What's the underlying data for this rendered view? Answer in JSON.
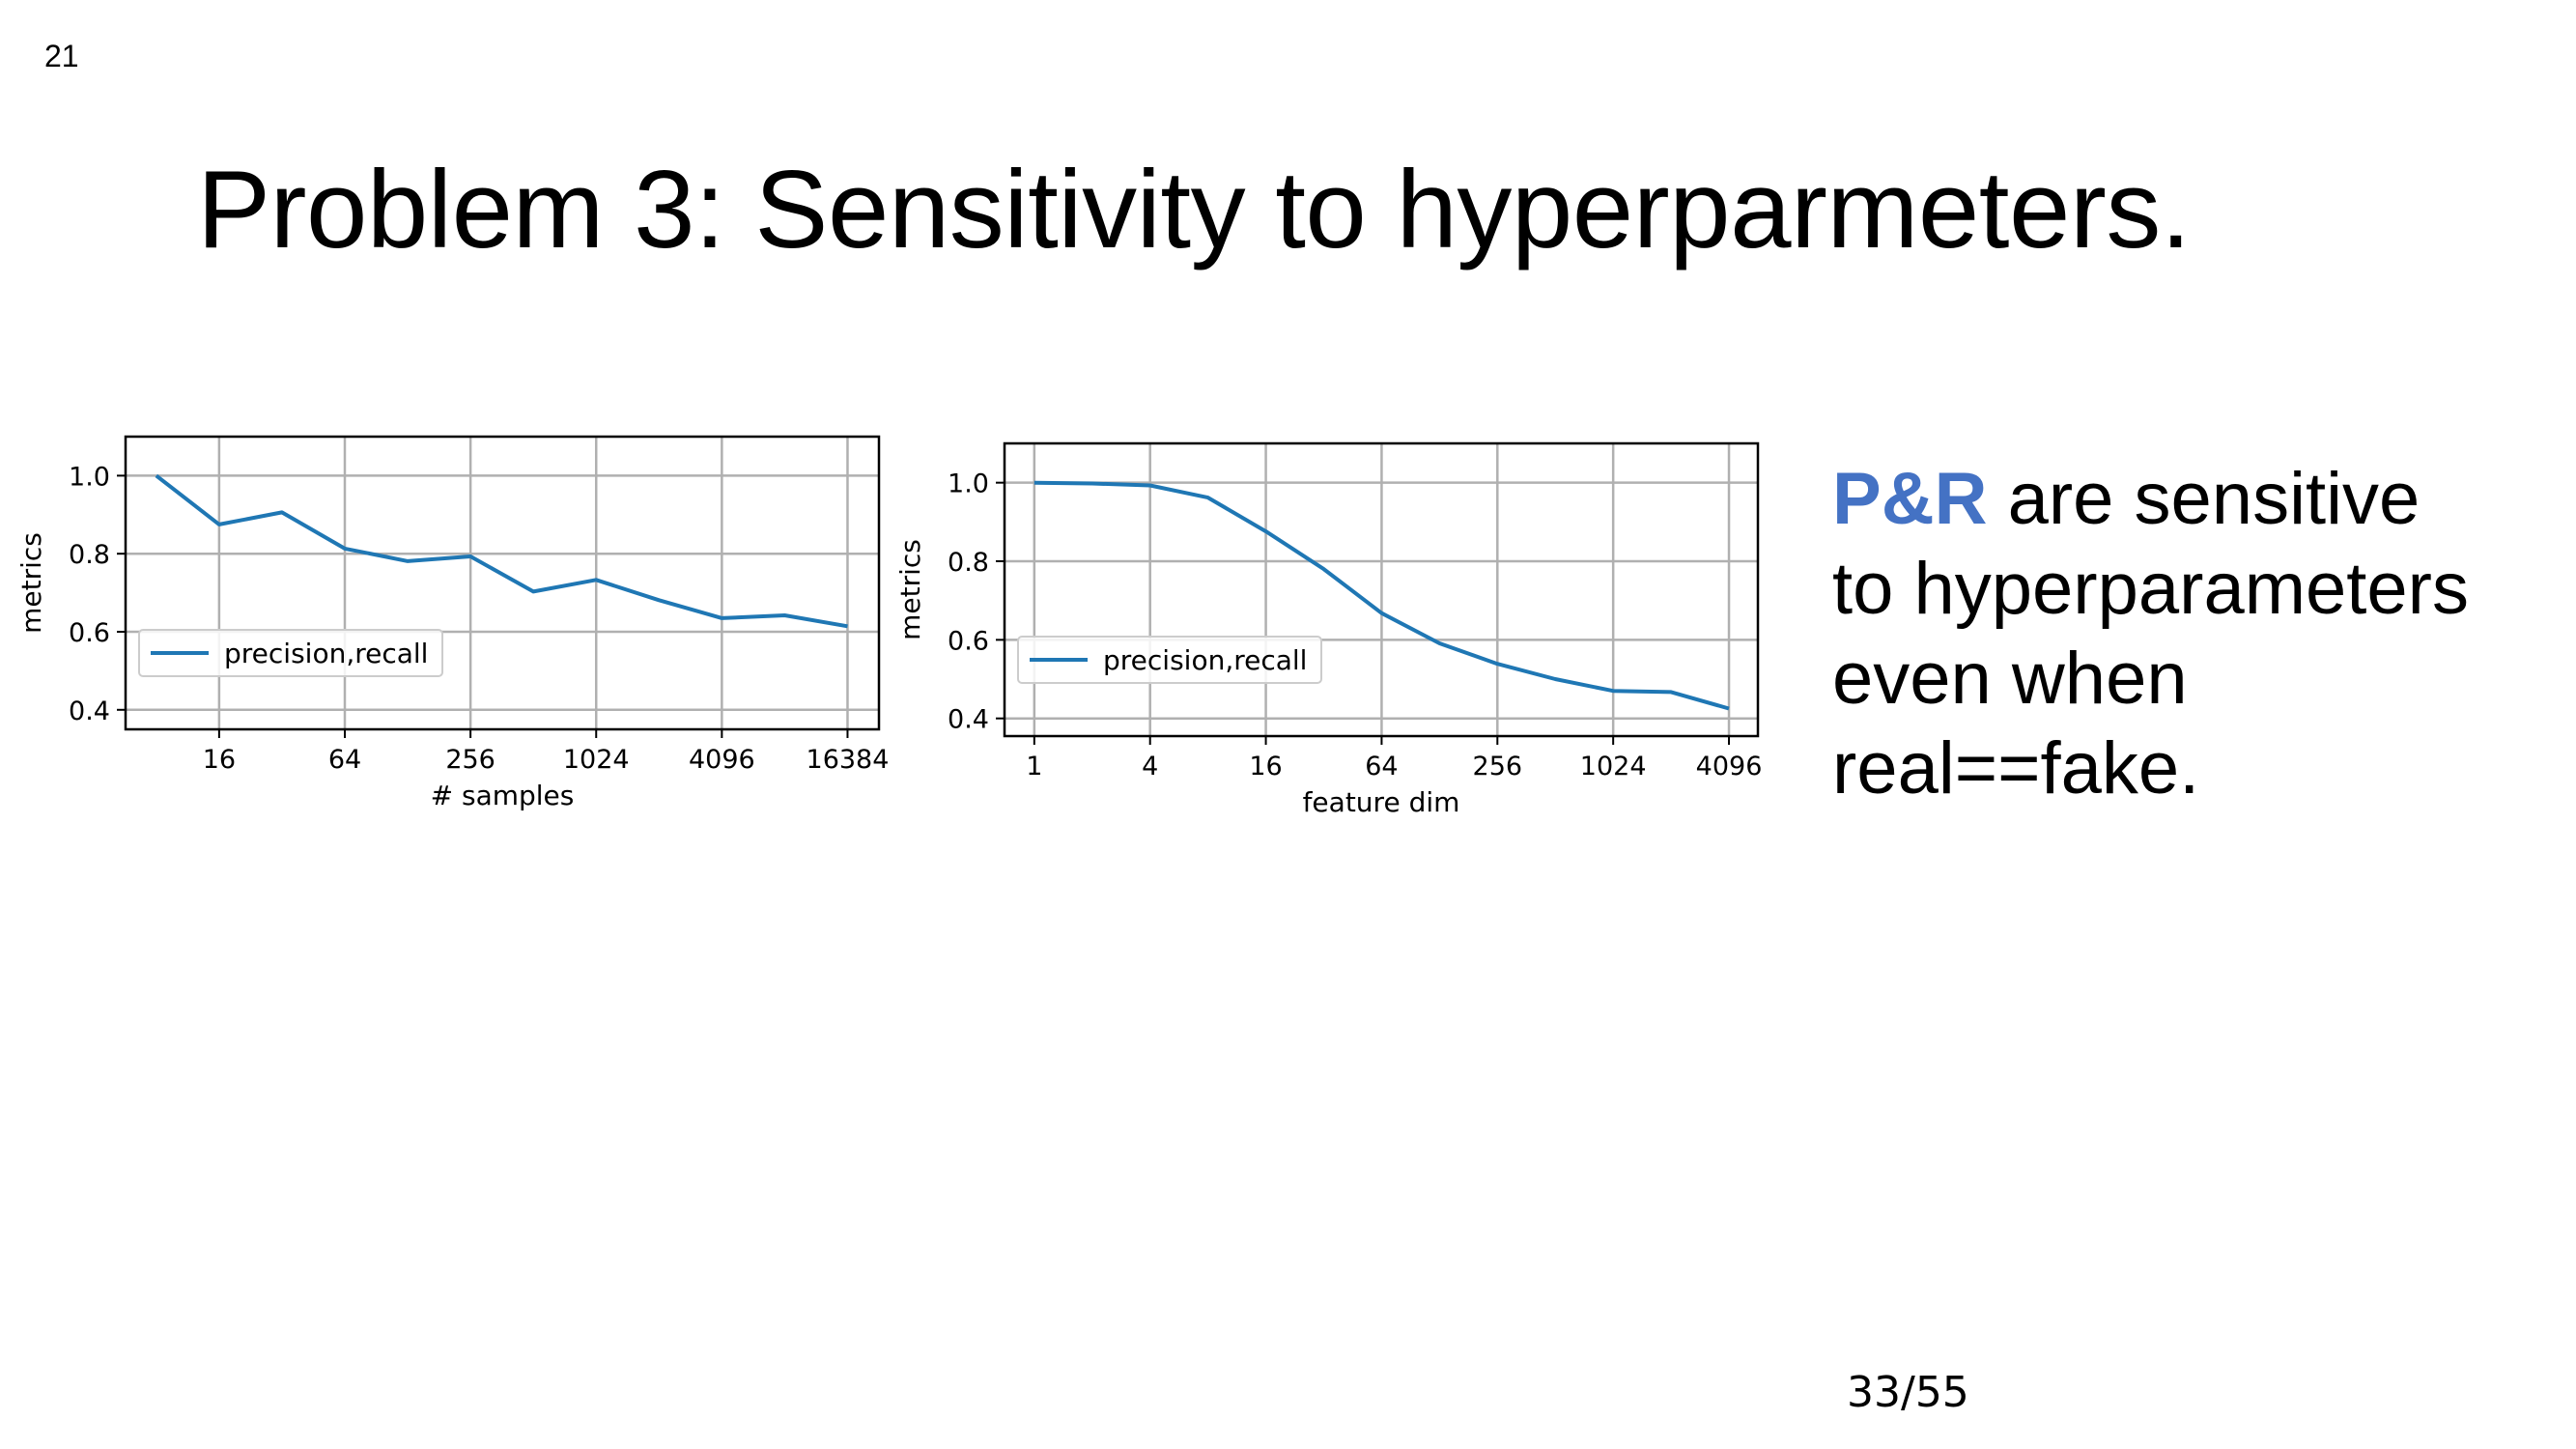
{
  "slide": {
    "number": "21",
    "title": "Problem 3: Sensitivity to hyperparmeters.",
    "side_text": {
      "highlight": "P&R",
      "line1_rest": " are sensitive",
      "line2": "to hyperparameters",
      "line3": "even when",
      "line4": "real==fake."
    },
    "page_count": "33/55"
  },
  "colors": {
    "line": "#1f77b4",
    "highlight": "#4472c4",
    "grid": "#b0b0b0"
  },
  "chart_data": [
    {
      "type": "line",
      "xscale": "log2",
      "xlabel": "# samples",
      "ylabel": "metrics",
      "x_ticks": [
        16,
        64,
        256,
        1024,
        4096,
        16384
      ],
      "y_ticks": [
        "0.4",
        "0.6",
        "0.8",
        "1.0"
      ],
      "xlim": [
        5.7,
        23170
      ],
      "ylim": [
        0.35,
        1.1
      ],
      "grid": true,
      "legend": "center-left",
      "series": [
        {
          "name": "precision,recall",
          "x": [
            8,
            16,
            32,
            64,
            128,
            256,
            512,
            1024,
            2048,
            4096,
            8192,
            16384
          ],
          "y": [
            1.0,
            0.875,
            0.906,
            0.813,
            0.781,
            0.793,
            0.703,
            0.733,
            0.681,
            0.635,
            0.642,
            0.614
          ]
        }
      ]
    },
    {
      "type": "line",
      "xscale": "log2",
      "xlabel": "feature dim",
      "ylabel": "metrics",
      "x_ticks": [
        1,
        4,
        16,
        64,
        256,
        1024,
        4096
      ],
      "y_ticks": [
        "0.4",
        "0.6",
        "0.8",
        "1.0"
      ],
      "xlim": [
        0.7,
        5793
      ],
      "ylim": [
        0.355,
        1.1
      ],
      "grid": true,
      "legend": "center-left",
      "series": [
        {
          "name": "precision,recall",
          "x": [
            1,
            2,
            4,
            8,
            16,
            32,
            64,
            128,
            256,
            512,
            1024,
            2048,
            4096
          ],
          "y": [
            1.0,
            0.998,
            0.993,
            0.962,
            0.876,
            0.78,
            0.668,
            0.591,
            0.539,
            0.5,
            0.47,
            0.467,
            0.425
          ]
        }
      ]
    }
  ]
}
